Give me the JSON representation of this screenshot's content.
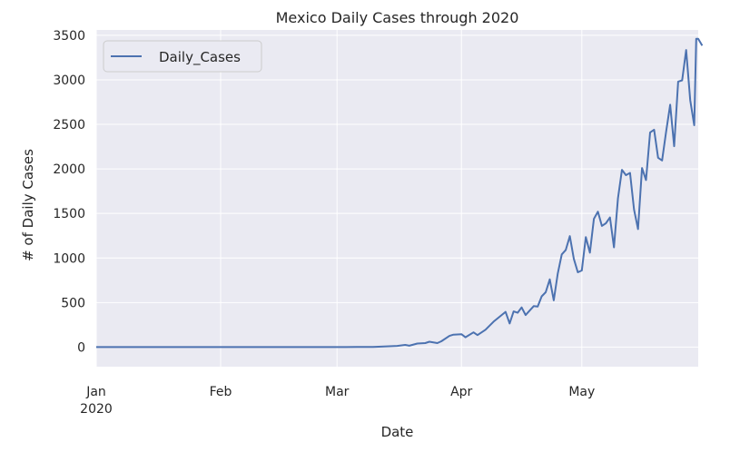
{
  "chart_data": {
    "type": "line",
    "title": "Mexico Daily Cases through 2020",
    "xlabel": "Date",
    "ylabel": "# of Daily Cases",
    "x_start": "2020-01-01",
    "x_end": "2020-05-30",
    "x_ticks": [
      {
        "date": "2020-01-01",
        "label": "Jan",
        "sublabel": "2020"
      },
      {
        "date": "2020-02-01",
        "label": "Feb",
        "sublabel": ""
      },
      {
        "date": "2020-03-01",
        "label": "Mar",
        "sublabel": ""
      },
      {
        "date": "2020-04-01",
        "label": "Apr",
        "sublabel": ""
      },
      {
        "date": "2020-05-01",
        "label": "May",
        "sublabel": ""
      }
    ],
    "ylim": [
      -220,
      3560
    ],
    "y_ticks": [
      0,
      500,
      1000,
      1500,
      2000,
      2500,
      3000,
      3500
    ],
    "grid": true,
    "legend_position": "top-left",
    "series": [
      {
        "name": "Daily_Cases",
        "color": "#4c72b0",
        "points": [
          [
            "2020-01-01",
            0
          ],
          [
            "2020-02-28",
            0
          ],
          [
            "2020-03-06",
            1
          ],
          [
            "2020-03-10",
            2
          ],
          [
            "2020-03-12",
            5
          ],
          [
            "2020-03-14",
            9
          ],
          [
            "2020-03-16",
            13
          ],
          [
            "2020-03-18",
            25
          ],
          [
            "2020-03-19",
            15
          ],
          [
            "2020-03-21",
            40
          ],
          [
            "2020-03-23",
            45
          ],
          [
            "2020-03-24",
            60
          ],
          [
            "2020-03-26",
            45
          ],
          [
            "2020-03-27",
            65
          ],
          [
            "2020-03-29",
            125
          ],
          [
            "2020-03-30",
            140
          ],
          [
            "2020-04-01",
            145
          ],
          [
            "2020-04-02",
            110
          ],
          [
            "2020-04-04",
            165
          ],
          [
            "2020-04-05",
            135
          ],
          [
            "2020-04-07",
            195
          ],
          [
            "2020-04-09",
            285
          ],
          [
            "2020-04-12",
            395
          ],
          [
            "2020-04-13",
            265
          ],
          [
            "2020-04-14",
            400
          ],
          [
            "2020-04-15",
            385
          ],
          [
            "2020-04-16",
            445
          ],
          [
            "2020-04-17",
            360
          ],
          [
            "2020-04-19",
            460
          ],
          [
            "2020-04-20",
            455
          ],
          [
            "2020-04-21",
            570
          ],
          [
            "2020-04-22",
            615
          ],
          [
            "2020-04-23",
            760
          ],
          [
            "2020-04-24",
            525
          ],
          [
            "2020-04-25",
            825
          ],
          [
            "2020-04-26",
            1040
          ],
          [
            "2020-04-27",
            1090
          ],
          [
            "2020-04-28",
            1245
          ],
          [
            "2020-04-29",
            990
          ],
          [
            "2020-04-30",
            840
          ],
          [
            "2020-05-01",
            860
          ],
          [
            "2020-05-02",
            1235
          ],
          [
            "2020-05-03",
            1060
          ],
          [
            "2020-05-04",
            1440
          ],
          [
            "2020-05-05",
            1520
          ],
          [
            "2020-05-06",
            1360
          ],
          [
            "2020-05-07",
            1390
          ],
          [
            "2020-05-08",
            1455
          ],
          [
            "2020-05-09",
            1120
          ],
          [
            "2020-05-10",
            1670
          ],
          [
            "2020-05-11",
            1990
          ],
          [
            "2020-05-12",
            1930
          ],
          [
            "2020-05-13",
            1955
          ],
          [
            "2020-05-14",
            1545
          ],
          [
            "2020-05-15",
            1325
          ],
          [
            "2020-05-16",
            2010
          ],
          [
            "2020-05-17",
            1875
          ],
          [
            "2020-05-18",
            2410
          ],
          [
            "2020-05-19",
            2440
          ],
          [
            "2020-05-20",
            2125
          ],
          [
            "2020-05-21",
            2095
          ],
          [
            "2020-05-22",
            2415
          ],
          [
            "2020-05-23",
            2720
          ],
          [
            "2020-05-24",
            2255
          ],
          [
            "2020-05-25",
            2980
          ],
          [
            "2020-05-26",
            2995
          ],
          [
            "2020-05-27",
            3335
          ],
          [
            "2020-05-28",
            2770
          ],
          [
            "2020-05-29",
            2490
          ],
          [
            "2020-05-29T12",
            3460
          ],
          [
            "2020-05-30",
            3460
          ],
          [
            "2020-05-31",
            3385
          ]
        ]
      }
    ]
  }
}
